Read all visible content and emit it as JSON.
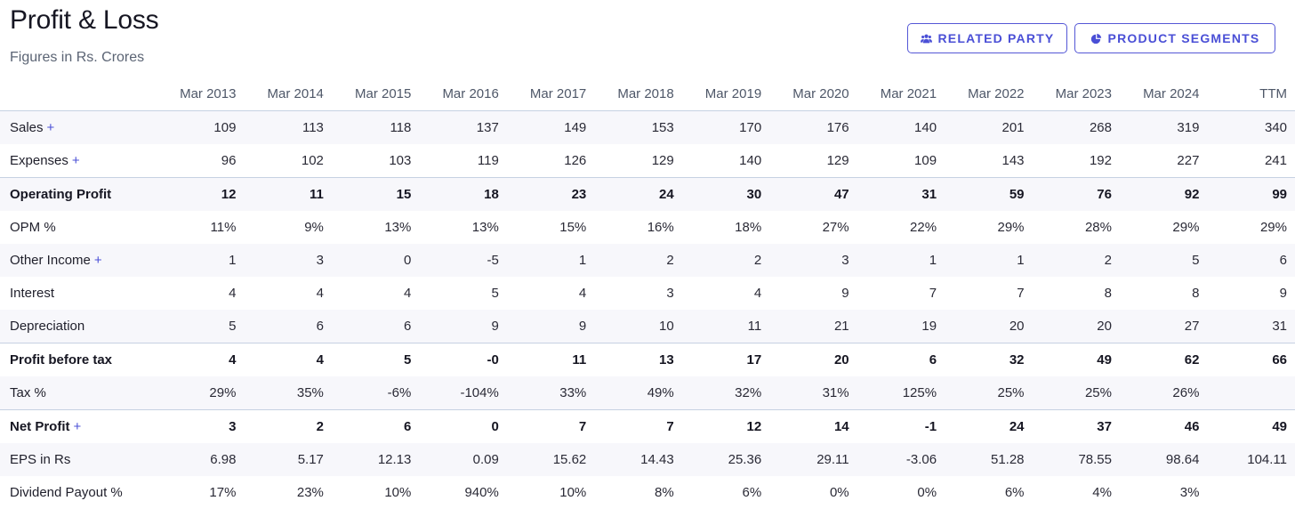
{
  "header": {
    "title": "Profit & Loss",
    "subtitle": "Figures in Rs. Crores",
    "buttons": {
      "related_party": {
        "label": "RELATED PARTY",
        "icon": "users-icon"
      },
      "product_segments": {
        "label": "PRODUCT SEGMENTS",
        "icon": "pie-chart-icon"
      }
    }
  },
  "colors": {
    "accent": "#4a4fd6",
    "row_shade": "#f7f7fb",
    "divider": "#c6d1e2"
  },
  "table": {
    "columns": [
      "Mar 2013",
      "Mar 2014",
      "Mar 2015",
      "Mar 2016",
      "Mar 2017",
      "Mar 2018",
      "Mar 2019",
      "Mar 2020",
      "Mar 2021",
      "Mar 2022",
      "Mar 2023",
      "Mar 2024",
      "TTM"
    ],
    "rows": [
      {
        "label": "Sales",
        "expandable": true,
        "expand_symbol": "+",
        "bold": false,
        "shaded": true,
        "topline": false,
        "values": [
          "109",
          "113",
          "118",
          "137",
          "149",
          "153",
          "170",
          "176",
          "140",
          "201",
          "268",
          "319",
          "340"
        ]
      },
      {
        "label": "Expenses",
        "expandable": true,
        "expand_symbol": "+",
        "bold": false,
        "shaded": false,
        "topline": false,
        "values": [
          "96",
          "102",
          "103",
          "119",
          "126",
          "129",
          "140",
          "129",
          "109",
          "143",
          "192",
          "227",
          "241"
        ]
      },
      {
        "label": "Operating Profit",
        "expandable": false,
        "bold": true,
        "shaded": true,
        "topline": true,
        "values": [
          "12",
          "11",
          "15",
          "18",
          "23",
          "24",
          "30",
          "47",
          "31",
          "59",
          "76",
          "92",
          "99"
        ]
      },
      {
        "label": "OPM %",
        "expandable": false,
        "bold": false,
        "shaded": false,
        "topline": false,
        "values": [
          "11%",
          "9%",
          "13%",
          "13%",
          "15%",
          "16%",
          "18%",
          "27%",
          "22%",
          "29%",
          "28%",
          "29%",
          "29%"
        ]
      },
      {
        "label": "Other Income",
        "expandable": true,
        "expand_symbol": "+",
        "bold": false,
        "shaded": true,
        "topline": false,
        "values": [
          "1",
          "3",
          "0",
          "-5",
          "1",
          "2",
          "2",
          "3",
          "1",
          "1",
          "2",
          "5",
          "6"
        ]
      },
      {
        "label": "Interest",
        "expandable": false,
        "bold": false,
        "shaded": false,
        "topline": false,
        "values": [
          "4",
          "4",
          "4",
          "5",
          "4",
          "3",
          "4",
          "9",
          "7",
          "7",
          "8",
          "8",
          "9"
        ]
      },
      {
        "label": "Depreciation",
        "expandable": false,
        "bold": false,
        "shaded": true,
        "topline": false,
        "values": [
          "5",
          "6",
          "6",
          "9",
          "9",
          "10",
          "11",
          "21",
          "19",
          "20",
          "20",
          "27",
          "31"
        ]
      },
      {
        "label": "Profit before tax",
        "expandable": false,
        "bold": true,
        "shaded": false,
        "topline": true,
        "values": [
          "4",
          "4",
          "5",
          "-0",
          "11",
          "13",
          "17",
          "20",
          "6",
          "32",
          "49",
          "62",
          "66"
        ]
      },
      {
        "label": "Tax %",
        "expandable": false,
        "bold": false,
        "shaded": true,
        "topline": false,
        "values": [
          "29%",
          "35%",
          "-6%",
          "-104%",
          "33%",
          "49%",
          "32%",
          "31%",
          "125%",
          "25%",
          "25%",
          "26%",
          ""
        ]
      },
      {
        "label": "Net Profit",
        "expandable": true,
        "expand_symbol": "+",
        "bold": true,
        "shaded": false,
        "topline": true,
        "values": [
          "3",
          "2",
          "6",
          "0",
          "7",
          "7",
          "12",
          "14",
          "-1",
          "24",
          "37",
          "46",
          "49"
        ]
      },
      {
        "label": "EPS in Rs",
        "expandable": false,
        "bold": false,
        "shaded": true,
        "topline": false,
        "values": [
          "6.98",
          "5.17",
          "12.13",
          "0.09",
          "15.62",
          "14.43",
          "25.36",
          "29.11",
          "-3.06",
          "51.28",
          "78.55",
          "98.64",
          "104.11"
        ]
      },
      {
        "label": "Dividend Payout %",
        "expandable": false,
        "bold": false,
        "shaded": false,
        "topline": false,
        "values": [
          "17%",
          "23%",
          "10%",
          "940%",
          "10%",
          "8%",
          "6%",
          "0%",
          "0%",
          "6%",
          "4%",
          "3%",
          ""
        ]
      }
    ]
  }
}
